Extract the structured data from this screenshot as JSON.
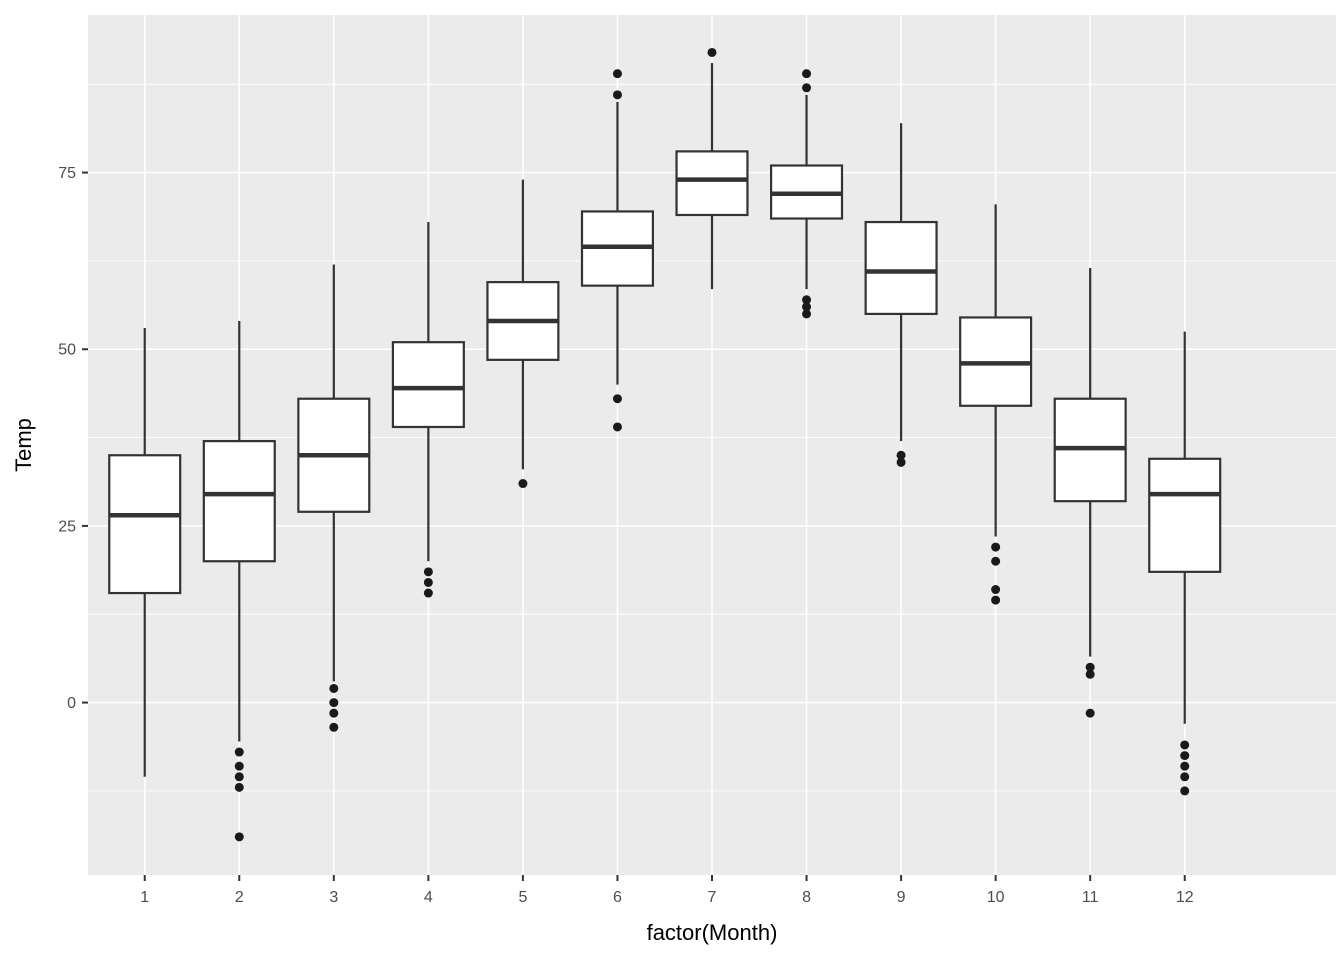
{
  "chart_data": {
    "type": "boxplot",
    "title": "",
    "xlabel": "factor(Month)",
    "ylabel": "Temp",
    "categories": [
      "1",
      "2",
      "3",
      "4",
      "5",
      "6",
      "7",
      "8",
      "9",
      "10",
      "11",
      "12"
    ],
    "y_ticks": [
      0,
      25,
      50,
      75
    ],
    "y_minor_ticks": [
      -12.5,
      12.5,
      37.5,
      62.5,
      87.5
    ],
    "ylim": [
      -24.4,
      97.3
    ],
    "legend": "none",
    "grid": "on",
    "series": [
      {
        "month": "1",
        "whisker_low": -10.5,
        "q1": 15.5,
        "median": 26.5,
        "q3": 35,
        "whisker_high": 53,
        "outliers": []
      },
      {
        "month": "2",
        "whisker_low": -5.5,
        "q1": 20,
        "median": 29.5,
        "q3": 37,
        "whisker_high": 54,
        "outliers": [
          -7,
          -9,
          -10.5,
          -12,
          -19
        ]
      },
      {
        "month": "3",
        "whisker_low": 3,
        "q1": 27,
        "median": 35,
        "q3": 43,
        "whisker_high": 62,
        "outliers": [
          2,
          0,
          -1.5,
          -3.5
        ]
      },
      {
        "month": "4",
        "whisker_low": 20,
        "q1": 39,
        "median": 44.5,
        "q3": 51,
        "whisker_high": 68,
        "outliers": [
          18.5,
          17,
          15.5
        ]
      },
      {
        "month": "5",
        "whisker_low": 33,
        "q1": 48.5,
        "median": 54,
        "q3": 59.5,
        "whisker_high": 74,
        "outliers": [
          31
        ]
      },
      {
        "month": "6",
        "whisker_low": 45,
        "q1": 59,
        "median": 64.5,
        "q3": 69.5,
        "whisker_high": 85,
        "outliers": [
          89,
          86,
          43,
          39
        ]
      },
      {
        "month": "7",
        "whisker_low": 58.5,
        "q1": 69,
        "median": 74,
        "q3": 78,
        "whisker_high": 90.5,
        "outliers": [
          92
        ]
      },
      {
        "month": "8",
        "whisker_low": 58.5,
        "q1": 68.5,
        "median": 72,
        "q3": 76,
        "whisker_high": 86,
        "outliers": [
          89,
          87,
          57,
          56,
          55
        ]
      },
      {
        "month": "9",
        "whisker_low": 37,
        "q1": 55,
        "median": 61,
        "q3": 68,
        "whisker_high": 82,
        "outliers": [
          35,
          34
        ]
      },
      {
        "month": "10",
        "whisker_low": 23.5,
        "q1": 42,
        "median": 48,
        "q3": 54.5,
        "whisker_high": 70.5,
        "outliers": [
          22,
          20,
          16,
          14.5
        ]
      },
      {
        "month": "11",
        "whisker_low": 6.5,
        "q1": 28.5,
        "median": 36,
        "q3": 43,
        "whisker_high": 61.5,
        "outliers": [
          5,
          4,
          -1.5
        ]
      },
      {
        "month": "12",
        "whisker_low": -3,
        "q1": 18.5,
        "median": 29.5,
        "q3": 34.5,
        "whisker_high": 52.5,
        "outliers": [
          -6,
          -7.5,
          -9,
          -10.5,
          -12.5
        ]
      }
    ],
    "colors": {
      "panel_bg": "#EBEBEB",
      "grid": "#FFFFFF",
      "box_stroke": "#333333",
      "box_fill": "#FFFFFF",
      "outlier_fill": "#1A1A1A",
      "tick_text": "#4D4D4D",
      "title_text": "#000000",
      "tick_mark": "#333333",
      "figure_bg": "#FFFFFF"
    }
  }
}
